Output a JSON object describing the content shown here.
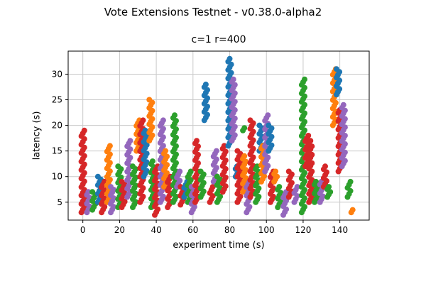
{
  "figure": {
    "suptitle": "Vote Extensions Testnet - v0.38.0-alpha2",
    "axes_title": "c=1 r=400"
  },
  "chart_data": {
    "type": "scatter",
    "title": "c=1 r=400",
    "suptitle": "Vote Extensions Testnet - v0.38.0-alpha2",
    "xlabel": "experiment time (s)",
    "ylabel": "latency (s)",
    "xlim": [
      -8,
      156
    ],
    "ylim": [
      1.5,
      34.5
    ],
    "xticks": [
      0,
      20,
      40,
      60,
      80,
      100,
      120,
      140
    ],
    "yticks": [
      5,
      10,
      15,
      20,
      25,
      30
    ],
    "grid": true,
    "legend": "none",
    "colors": {
      "blue": "#1f77b4",
      "orange": "#ff7f0e",
      "green": "#2ca02c",
      "red": "#d62728",
      "purple": "#9467bd"
    },
    "clusters": [
      {
        "x": 0,
        "series": "red",
        "y_min": 3,
        "y_max": 19
      },
      {
        "x": 3,
        "series": "purple",
        "y_min": 3,
        "y_max": 7
      },
      {
        "x": 6,
        "series": "green",
        "y_min": 3.5,
        "y_max": 7
      },
      {
        "x": 9,
        "series": "blue",
        "y_min": 5,
        "y_max": 10
      },
      {
        "x": 11,
        "series": "red",
        "y_min": 3,
        "y_max": 9
      },
      {
        "x": 14,
        "series": "orange",
        "y_min": 5,
        "y_max": 16
      },
      {
        "x": 16,
        "series": "purple",
        "y_min": 3,
        "y_max": 8
      },
      {
        "x": 20,
        "series": "green",
        "y_min": 4,
        "y_max": 12
      },
      {
        "x": 22,
        "series": "red",
        "y_min": 4,
        "y_max": 9
      },
      {
        "x": 25,
        "series": "purple",
        "y_min": 6,
        "y_max": 17
      },
      {
        "x": 28,
        "series": "green",
        "y_min": 4,
        "y_max": 12
      },
      {
        "x": 30,
        "series": "orange",
        "y_min": 15,
        "y_max": 21
      },
      {
        "x": 32,
        "series": "red",
        "y_min": 5,
        "y_max": 21
      },
      {
        "x": 34,
        "series": "blue",
        "y_min": 10,
        "y_max": 19
      },
      {
        "x": 37,
        "series": "orange",
        "y_min": 17,
        "y_max": 25
      },
      {
        "x": 38,
        "series": "green",
        "y_min": 4,
        "y_max": 13
      },
      {
        "x": 40,
        "series": "red",
        "y_min": 2.5,
        "y_max": 12
      },
      {
        "x": 43,
        "series": "purple",
        "y_min": 5,
        "y_max": 21
      },
      {
        "x": 45,
        "series": "orange",
        "y_min": 8,
        "y_max": 15
      },
      {
        "x": 47,
        "series": "red",
        "y_min": 4,
        "y_max": 10
      },
      {
        "x": 50,
        "series": "green",
        "y_min": 5,
        "y_max": 22
      },
      {
        "x": 52,
        "series": "purple",
        "y_min": 8,
        "y_max": 11
      },
      {
        "x": 54,
        "series": "red",
        "y_min": 4.5,
        "y_max": 8
      },
      {
        "x": 56,
        "series": "blue",
        "y_min": 6,
        "y_max": 9
      },
      {
        "x": 58,
        "series": "green",
        "y_min": 5,
        "y_max": 11
      },
      {
        "x": 60,
        "series": "purple",
        "y_min": 3,
        "y_max": 8
      },
      {
        "x": 62,
        "series": "red",
        "y_min": 5,
        "y_max": 17
      },
      {
        "x": 65,
        "series": "green",
        "y_min": 6,
        "y_max": 11
      },
      {
        "x": 67,
        "series": "blue",
        "y_min": 21,
        "y_max": 28
      },
      {
        "x": 70,
        "series": "red",
        "y_min": 5,
        "y_max": 8
      },
      {
        "x": 72,
        "series": "purple",
        "y_min": 9,
        "y_max": 15
      },
      {
        "x": 74,
        "series": "green",
        "y_min": 5,
        "y_max": 10
      },
      {
        "x": 77,
        "series": "red",
        "y_min": 7,
        "y_max": 16
      },
      {
        "x": 80,
        "series": "blue",
        "y_min": 16,
        "y_max": 33
      },
      {
        "x": 82,
        "series": "purple",
        "y_min": 17,
        "y_max": 29
      },
      {
        "x": 84,
        "series": "blue",
        "y_min": 10,
        "y_max": 12
      },
      {
        "x": 85,
        "series": "red",
        "y_min": 5,
        "y_max": 15
      },
      {
        "x": 88,
        "series": "orange",
        "y_min": 7,
        "y_max": 14
      },
      {
        "x": 88,
        "series": "green",
        "y_min": 19,
        "y_max": 19.5
      },
      {
        "x": 90,
        "series": "purple",
        "y_min": 3,
        "y_max": 9
      },
      {
        "x": 92,
        "series": "red",
        "y_min": 6,
        "y_max": 21
      },
      {
        "x": 95,
        "series": "green",
        "y_min": 5,
        "y_max": 12
      },
      {
        "x": 97,
        "series": "blue",
        "y_min": 15,
        "y_max": 20
      },
      {
        "x": 98,
        "series": "orange",
        "y_min": 9,
        "y_max": 16
      },
      {
        "x": 100,
        "series": "purple",
        "y_min": 11,
        "y_max": 22
      },
      {
        "x": 102,
        "series": "blue",
        "y_min": 15,
        "y_max": 20
      },
      {
        "x": 103,
        "series": "red",
        "y_min": 5,
        "y_max": 11
      },
      {
        "x": 105,
        "series": "orange",
        "y_min": 9,
        "y_max": 11
      },
      {
        "x": 107,
        "series": "green",
        "y_min": 4,
        "y_max": 8
      },
      {
        "x": 110,
        "series": "purple",
        "y_min": 2.5,
        "y_max": 7
      },
      {
        "x": 113,
        "series": "red",
        "y_min": 6,
        "y_max": 11
      },
      {
        "x": 116,
        "series": "purple",
        "y_min": 5,
        "y_max": 8
      },
      {
        "x": 120,
        "series": "green",
        "y_min": 3,
        "y_max": 29
      },
      {
        "x": 122,
        "series": "red",
        "y_min": 12,
        "y_max": 18
      },
      {
        "x": 124,
        "series": "red",
        "y_min": 5,
        "y_max": 17
      },
      {
        "x": 127,
        "series": "green",
        "y_min": 5,
        "y_max": 9
      },
      {
        "x": 130,
        "series": "purple",
        "y_min": 5,
        "y_max": 9
      },
      {
        "x": 132,
        "series": "red",
        "y_min": 8,
        "y_max": 12
      },
      {
        "x": 134,
        "series": "green",
        "y_min": 6,
        "y_max": 8
      },
      {
        "x": 137,
        "series": "orange",
        "y_min": 20,
        "y_max": 31
      },
      {
        "x": 139,
        "series": "blue",
        "y_min": 26,
        "y_max": 31
      },
      {
        "x": 140,
        "series": "red",
        "y_min": 11,
        "y_max": 23
      },
      {
        "x": 142,
        "series": "purple",
        "y_min": 12,
        "y_max": 24
      },
      {
        "x": 145,
        "series": "green",
        "y_min": 6,
        "y_max": 9
      },
      {
        "x": 147,
        "series": "orange",
        "y_min": 3,
        "y_max": 3.5
      }
    ]
  }
}
